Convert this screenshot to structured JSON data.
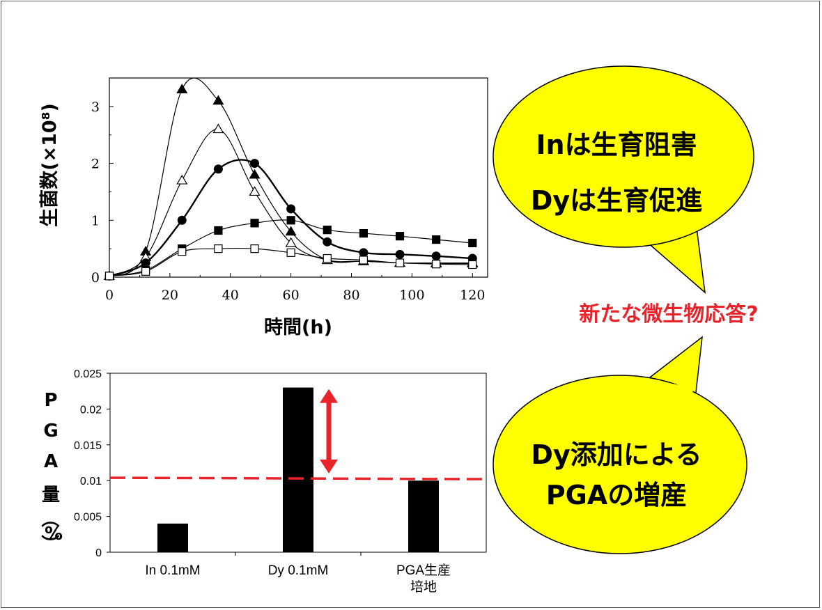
{
  "chart_data": [
    {
      "type": "line",
      "xlabel": "時間(h)",
      "ylabel": "生菌数(×10⁸)",
      "xlim": [
        0,
        125
      ],
      "ylim": [
        0,
        3.5
      ],
      "xticks": [
        0,
        20,
        40,
        60,
        80,
        100,
        120
      ],
      "yticks": [
        0,
        1,
        2,
        3
      ],
      "grid": false,
      "series": [
        {
          "marker": "triangle-filled",
          "x": [
            0,
            12,
            24,
            36,
            48,
            60,
            72,
            84,
            96,
            108,
            120
          ],
          "y": [
            0.02,
            0.45,
            3.3,
            3.1,
            1.8,
            0.8,
            0.3,
            0.28,
            0.25,
            0.25,
            0.25
          ]
        },
        {
          "marker": "triangle-open",
          "x": [
            0,
            12,
            24,
            36,
            48,
            60,
            72,
            84,
            96,
            108,
            120
          ],
          "y": [
            0.02,
            0.35,
            1.7,
            2.6,
            1.5,
            0.6,
            0.3,
            0.28,
            0.25,
            0.24,
            0.24
          ]
        },
        {
          "marker": "circle-filled",
          "x": [
            0,
            12,
            24,
            36,
            48,
            60,
            72,
            84,
            96,
            108,
            120
          ],
          "y": [
            0.02,
            0.25,
            1.0,
            1.9,
            2.0,
            1.2,
            0.62,
            0.43,
            0.4,
            0.37,
            0.33
          ]
        },
        {
          "marker": "square-filled",
          "x": [
            0,
            12,
            24,
            36,
            48,
            60,
            72,
            84,
            96,
            108,
            120
          ],
          "y": [
            0.02,
            0.12,
            0.5,
            0.82,
            0.95,
            1.0,
            0.83,
            0.77,
            0.72,
            0.66,
            0.6
          ]
        },
        {
          "marker": "square-open",
          "x": [
            0,
            12,
            24,
            36,
            48,
            60,
            72,
            84,
            96,
            108,
            120
          ],
          "y": [
            0.02,
            0.1,
            0.45,
            0.5,
            0.5,
            0.43,
            0.33,
            0.3,
            0.25,
            0.23,
            0.22
          ]
        }
      ]
    },
    {
      "type": "bar",
      "categories": [
        "In 0.1mM",
        "Dy 0.1mM",
        "PGA生産\n培地"
      ],
      "values": [
        0.004,
        0.023,
        0.01
      ],
      "ylabel": "PGA量(%)",
      "ylim": [
        0,
        0.025
      ],
      "yticks": [
        0,
        0.005,
        0.01,
        0.015,
        0.02,
        0.025
      ],
      "ytick_labels": [
        "0",
        "0.005",
        "0.01",
        "0.015",
        "0.02",
        "0.025"
      ],
      "reference_line": 0.0104,
      "reference_line_color": "#e8232a",
      "arrow_color": "#e8232a",
      "bar_color": "#000000"
    }
  ],
  "bubbles": {
    "top_line1": "Inは生育阻害",
    "top_line2": "Dyは生育促進",
    "bottom_line1": "Dy添加による",
    "bottom_line2": "PGAの増産",
    "fill": "#ffff00"
  },
  "middle_text": "新たな微生物応答?",
  "middle_text_color": "#e8232a",
  "pga_ylabel_chars": [
    "P",
    "G",
    "A",
    "量",
    "（",
    "）",
    "%"
  ]
}
